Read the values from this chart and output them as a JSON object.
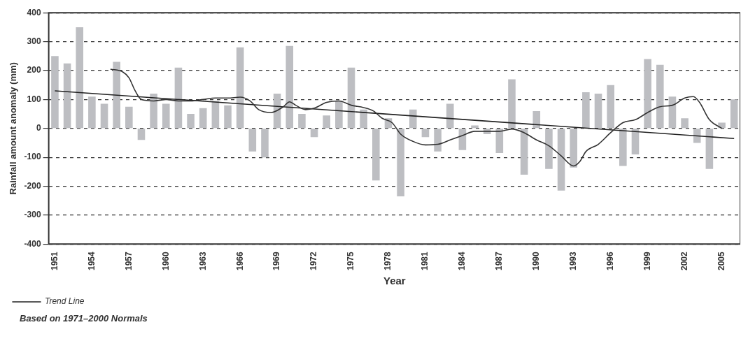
{
  "chart_data": {
    "type": "bar",
    "xlabel": "Year",
    "ylabel": "Rainfall amount anomaly (mm)",
    "xlim": [
      1950.5,
      2006.5
    ],
    "xticks": [
      1951,
      1954,
      1957,
      1960,
      1963,
      1966,
      1969,
      1972,
      1975,
      1978,
      1981,
      1984,
      1987,
      1990,
      1993,
      1996,
      1999,
      2002,
      2005
    ],
    "ylim": [
      -400,
      400
    ],
    "yticks": [
      -400,
      -300,
      -200,
      -100,
      0,
      100,
      200,
      300,
      400
    ],
    "grid": "y",
    "legend": "bottom left",
    "annotations": [
      "Based on 1971–2000 Normals"
    ],
    "series": [
      {
        "color": "#bdbec2",
        "x": [
          1951,
          1952,
          1953,
          1954,
          1955,
          1956,
          1957,
          1958,
          1959,
          1960,
          1961,
          1962,
          1963,
          1964,
          1965,
          1966,
          1967,
          1968,
          1969,
          1970,
          1971,
          1972,
          1973,
          1974,
          1975,
          1976,
          1977,
          1978,
          1979,
          1980,
          1981,
          1982,
          1983,
          1984,
          1985,
          1986,
          1987,
          1988,
          1989,
          1990,
          1991,
          1992,
          1993,
          1994,
          1995,
          1996,
          1997,
          1998,
          1999,
          2000,
          2001,
          2002,
          2003,
          2004,
          2005,
          2006
        ],
        "values": [
          250,
          225,
          350,
          110,
          85,
          230,
          75,
          -40,
          120,
          85,
          210,
          50,
          70,
          95,
          80,
          280,
          -80,
          -100,
          120,
          285,
          50,
          -30,
          45,
          95,
          210,
          65,
          -180,
          35,
          -235,
          65,
          -30,
          -80,
          85,
          -75,
          10,
          -20,
          -85,
          170,
          -160,
          60,
          -140,
          -215,
          -135,
          125,
          120,
          150,
          -130,
          -90,
          240,
          220,
          110,
          35,
          -50,
          -140,
          20,
          100
        ]
      },
      {
        "type": "line",
        "color": "#333333",
        "x": [
          1955.5,
          1956.5,
          1957,
          1957.5,
          1958,
          1959,
          1960,
          1961,
          1962,
          1963,
          1964,
          1965,
          1966,
          1966.8,
          1967.5,
          1968.5,
          1969.5,
          1970,
          1970.5,
          1971.3,
          1972,
          1973,
          1974,
          1975,
          1976,
          1976.8,
          1977.5,
          1978.3,
          1979,
          1980,
          1981,
          1982,
          1983,
          1984,
          1985,
          1986,
          1987,
          1988,
          1989,
          1990,
          1991,
          1992,
          1993,
          1993.5,
          1994,
          1995,
          1996,
          1997,
          1998,
          1999,
          2000,
          2001,
          2002,
          2002.7,
          2003.2,
          2004,
          2005
        ],
        "values": [
          205,
          195,
          175,
          130,
          100,
          95,
          100,
          95,
          95,
          100,
          105,
          105,
          108,
          95,
          65,
          55,
          75,
          92,
          80,
          65,
          70,
          90,
          95,
          80,
          72,
          60,
          35,
          20,
          -20,
          -45,
          -57,
          -55,
          -40,
          -25,
          -10,
          -10,
          -10,
          -2,
          -15,
          -40,
          -60,
          -95,
          -130,
          -115,
          -80,
          -55,
          -15,
          20,
          30,
          55,
          75,
          80,
          105,
          110,
          90,
          30,
          0
        ]
      },
      {
        "type": "line",
        "name": "Trend Line",
        "color": "#222222",
        "x": [
          1951,
          2006
        ],
        "values": [
          130,
          -35
        ]
      }
    ]
  }
}
